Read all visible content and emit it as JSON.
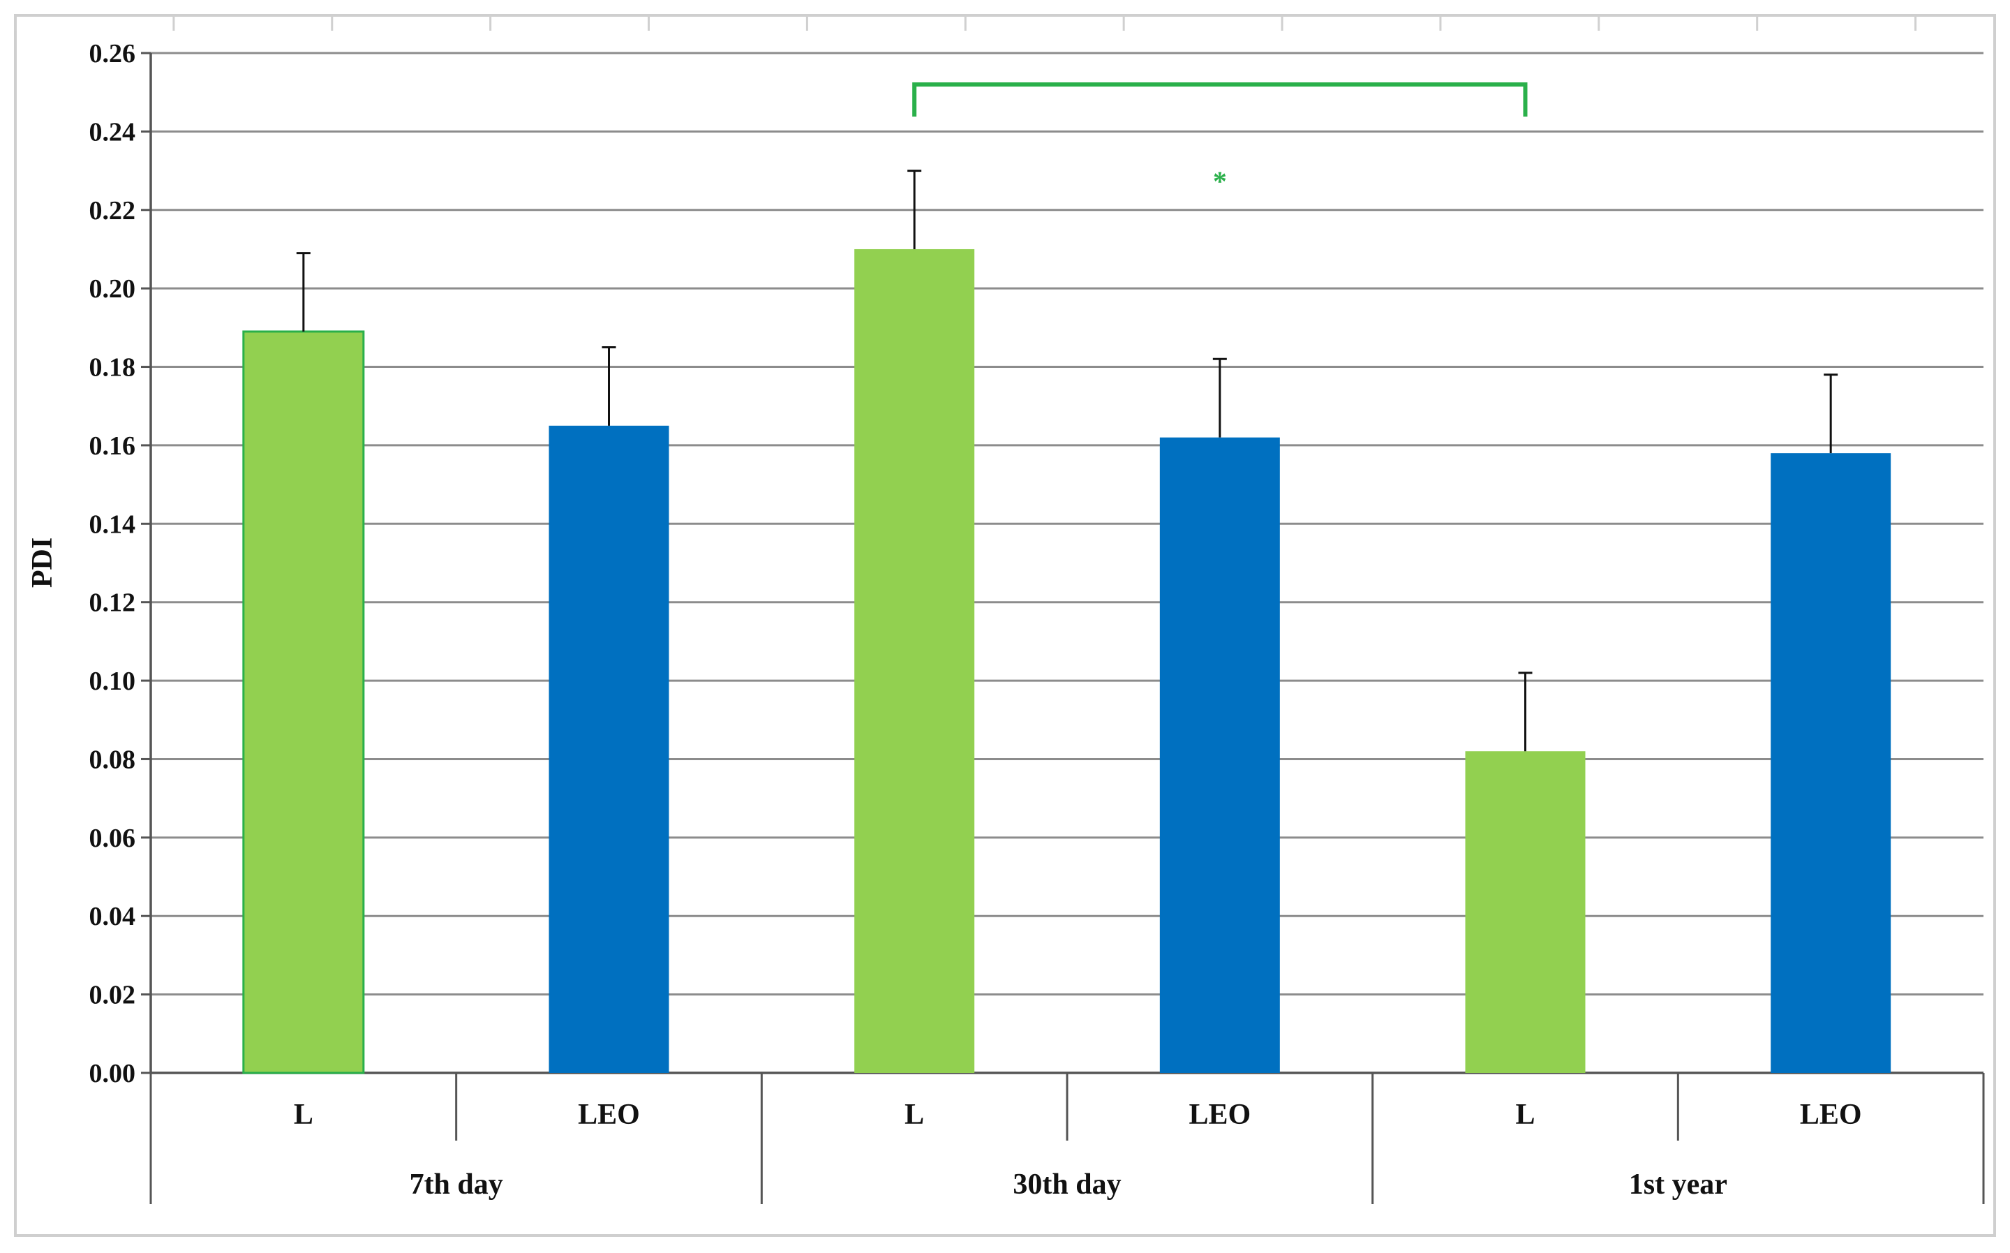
{
  "chart_data": {
    "type": "bar",
    "ylabel": "PDI",
    "xlabel": "",
    "ylim": [
      0,
      0.26
    ],
    "ytick_step": 0.02,
    "grid": true,
    "categories": [
      "L",
      "LEO",
      "L",
      "LEO",
      "L",
      "LEO"
    ],
    "groups": [
      {
        "label": "7th day",
        "members": [
          0,
          1
        ]
      },
      {
        "label": "30th day",
        "members": [
          2,
          3
        ]
      },
      {
        "label": "1st year",
        "members": [
          4,
          5
        ]
      }
    ],
    "series": [
      {
        "values": [
          0.189,
          0.165,
          0.21,
          0.162,
          0.082,
          0.158
        ],
        "errors": [
          0.02,
          0.02,
          0.02,
          0.02,
          0.02,
          0.02
        ],
        "colors": [
          "#92d050",
          "#0070c0",
          "#92d050",
          "#0070c0",
          "#92d050",
          "#0070c0"
        ]
      }
    ],
    "annotations": [
      {
        "type": "bracket",
        "from_index": 2,
        "to_index": 4,
        "y": 0.252,
        "label": "*",
        "color": "#2ab04a"
      }
    ]
  }
}
